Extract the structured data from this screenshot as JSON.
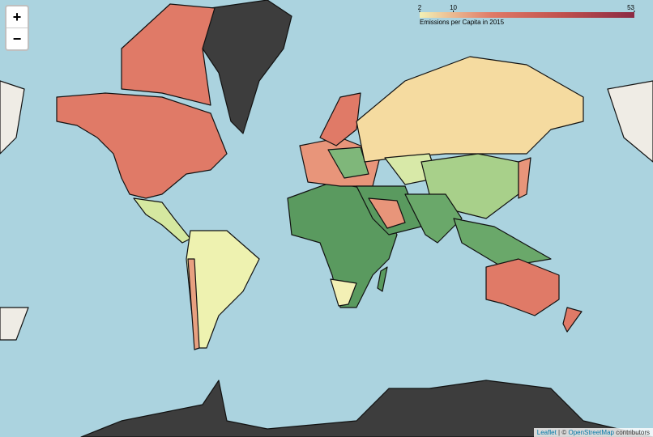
{
  "controls": {
    "zoom_in": "+",
    "zoom_out": "−"
  },
  "legend": {
    "title": "Emissions per Capita in 2015",
    "domain": [
      2,
      53
    ],
    "ticks": [
      2,
      10,
      53
    ],
    "colors": [
      "#f3f0b5",
      "#e07a67",
      "#c0504d",
      "#8b2a44"
    ]
  },
  "attribution": [
    "Leaflet",
    "| ©",
    "OpenStreetMap",
    "contributors"
  ]
}
